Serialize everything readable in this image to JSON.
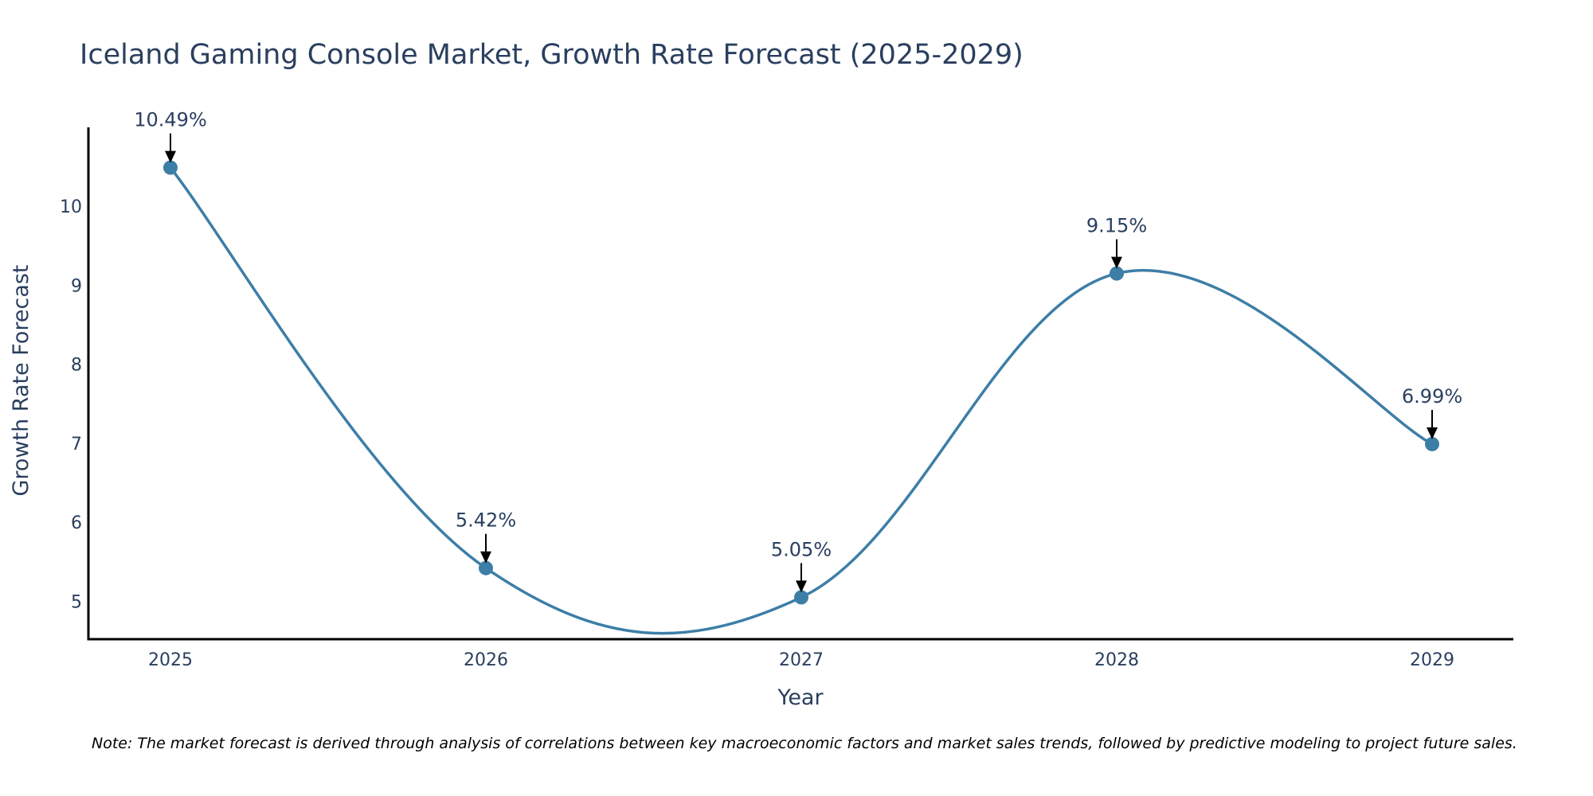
{
  "chart_data": {
    "type": "line",
    "title": "Iceland Gaming Console Market, Growth Rate Forecast (2025-2029)",
    "xlabel": "Year",
    "ylabel": "Growth Rate Forecast",
    "categories": [
      "2025",
      "2026",
      "2027",
      "2028",
      "2029"
    ],
    "values": [
      10.49,
      5.42,
      5.05,
      9.15,
      6.99
    ],
    "data_labels": [
      "10.49%",
      "5.42%",
      "5.05%",
      "9.15%",
      "6.99%"
    ],
    "yticks": [
      5,
      6,
      7,
      8,
      9,
      10
    ],
    "ylim": [
      4.52,
      11.0
    ],
    "line_shape": "spline",
    "grid": false,
    "legend": "none",
    "note": "Note: The market forecast is derived through analysis of correlations between key macroeconomic factors and market sales trends, followed by predictive modeling to project future sales.",
    "colors": {
      "line": "#3d7ea6",
      "marker": "#3d7ea6",
      "text": "#2a3f5f",
      "axis": "#000000"
    }
  }
}
